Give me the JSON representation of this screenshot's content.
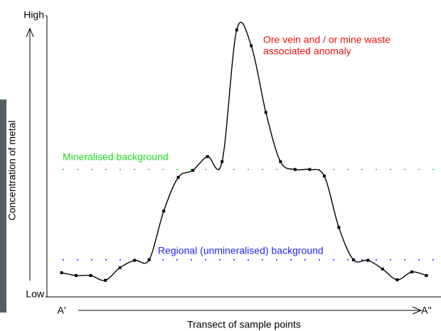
{
  "chart_data": {
    "type": "line",
    "x_label": "Transect of sample points",
    "y_label": "Concentration of metal",
    "x": [
      1,
      2,
      3,
      4,
      5,
      6,
      7,
      8,
      9,
      10,
      11,
      12,
      13,
      14,
      15,
      16,
      17,
      18,
      19,
      20,
      21,
      22,
      23,
      24,
      25,
      26
    ],
    "xlim": [
      0,
      27
    ],
    "xticks": [
      {
        "value": 1,
        "label": "A'"
      },
      {
        "value": 26,
        "label": "A''"
      }
    ],
    "ylim": [
      0,
      100
    ],
    "yticks": [
      {
        "value": 0,
        "label": "Low"
      },
      {
        "value": 100,
        "label": "High"
      }
    ],
    "series": [
      {
        "color": "#000000",
        "values": [
          8.6,
          7.6,
          7.6,
          5.9,
          10.4,
          13.0,
          13.2,
          30.5,
          42.5,
          45.0,
          49.9,
          48.1,
          94.9,
          89.3,
          65.6,
          48.1,
          45.3,
          45.3,
          43.0,
          24.7,
          13.2,
          13.0,
          9.9,
          6.1,
          8.9,
          7.6
        ]
      }
    ],
    "reference_lines": [
      {
        "label": "Mineralised background",
        "value": 45.3,
        "color": "#22dd22"
      },
      {
        "label": "Regional (unmineralised) background",
        "value": 13.2,
        "color": "#2222ee"
      }
    ],
    "annotation": {
      "lines": [
        "Ore vein and / or mine waste",
        "associated anomaly"
      ],
      "color": "#ee1111"
    }
  }
}
